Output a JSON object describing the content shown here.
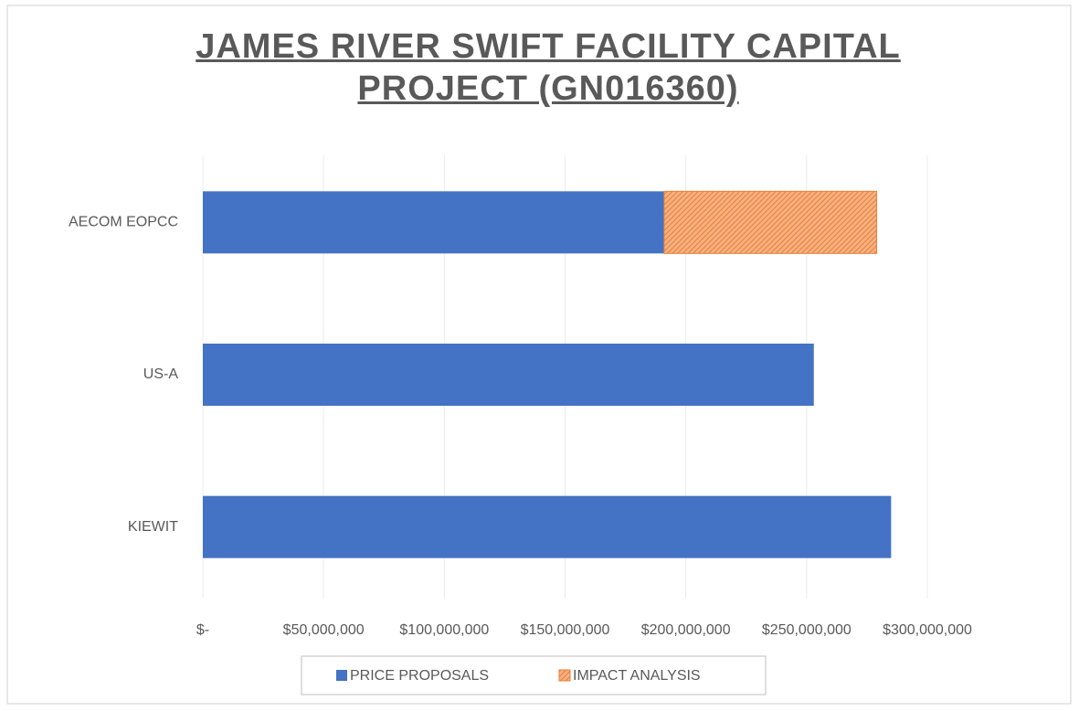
{
  "chart_data": {
    "type": "stacked_barh",
    "title": "JAMES RIVER SWIFT FACILITY CAPITAL PROJECT (GN016360)",
    "categories": [
      "AECOM EOPCC",
      "US-A",
      "KIEWIT"
    ],
    "series": [
      {
        "name": "PRICE PROPOSALS",
        "color": "#4472c4",
        "values": [
          191000000,
          253000000,
          285000000
        ]
      },
      {
        "name": "IMPACT ANALYSIS",
        "color": "#ed7d31",
        "hatch": true,
        "values": [
          88000000,
          null,
          null
        ]
      }
    ],
    "xlim": [
      0,
      300000000
    ],
    "xticks": [
      {
        "value": 0,
        "label": "$-"
      },
      {
        "value": 50000000,
        "label": "$50,000,000"
      },
      {
        "value": 100000000,
        "label": "$100,000,000"
      },
      {
        "value": 150000000,
        "label": "$150,000,000"
      },
      {
        "value": 200000000,
        "label": "$200,000,000"
      },
      {
        "value": 250000000,
        "label": "$250,000,000"
      },
      {
        "value": 300000000,
        "label": "$300,000,000"
      }
    ],
    "grid": true,
    "legend": "bottom"
  }
}
